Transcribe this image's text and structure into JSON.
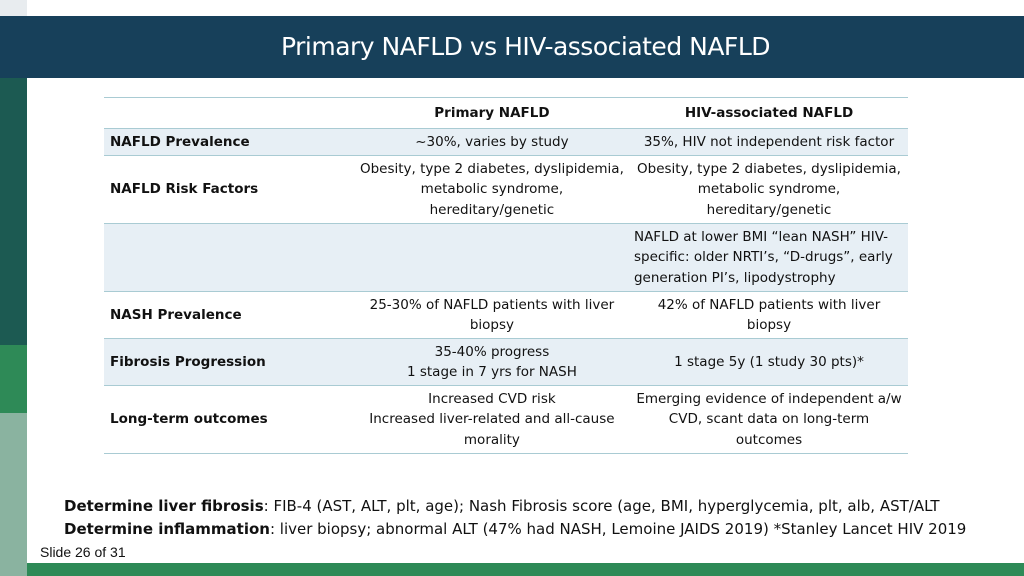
{
  "title": "Primary NAFLD vs HIV-associated NAFLD",
  "colors": {
    "title_bar": "#17405a",
    "strip": [
      "#e8ecef",
      "#17405a",
      "#1c5a52",
      "#2e8a57",
      "#8ab3a0"
    ],
    "bottom_bar": "#2e8a57",
    "row_shade": "#e7eff5"
  },
  "table": {
    "headers": [
      "",
      "Primary NAFLD",
      "HIV-associated NAFLD"
    ],
    "rows": [
      {
        "label": "NAFLD Prevalence",
        "primary": "~30%, varies by study",
        "hiv": "35%, HIV not independent risk factor"
      },
      {
        "label": "NAFLD Risk Factors",
        "primary": "Obesity, type 2 diabetes, dyslipidemia, metabolic syndrome, hereditary/genetic",
        "hiv": "Obesity, type 2 diabetes, dyslipidemia, metabolic syndrome, hereditary/genetic"
      },
      {
        "label": "",
        "primary": "",
        "hiv": "NAFLD at lower BMI “lean NASH” HIV-specific: older NRTI’s, “D-drugs”, early generation PI’s, lipodystrophy"
      },
      {
        "label": "NASH Prevalence",
        "primary": "25-30% of NAFLD patients with liver biopsy",
        "hiv": "42% of NAFLD patients with liver biopsy"
      },
      {
        "label": "Fibrosis Progression",
        "primary_lines": [
          "35-40% progress",
          "1 stage in 7 yrs for NASH"
        ],
        "hiv": "1 stage 5y (1 study 30 pts)*"
      },
      {
        "label": "Long-term outcomes",
        "primary_lines": [
          "Increased CVD risk",
          "Increased liver-related and all-cause morality"
        ],
        "hiv": "Emerging evidence of independent a/w CVD, scant data on long-term outcomes"
      }
    ]
  },
  "notes": [
    {
      "bold": "Determine liver fibrosis",
      "text": ": FIB-4 (AST, ALT, plt, age); Nash Fibrosis score (age, BMI, hyperglycemia, plt, alb, AST/ALT"
    },
    {
      "bold": "Determine inflammation",
      "text": ": liver biopsy; abnormal ALT (47% had NASH, Lemoine JAIDS 2019)  *Stanley Lancet HIV 2019"
    }
  ],
  "slide_number": "Slide 26 of 31"
}
